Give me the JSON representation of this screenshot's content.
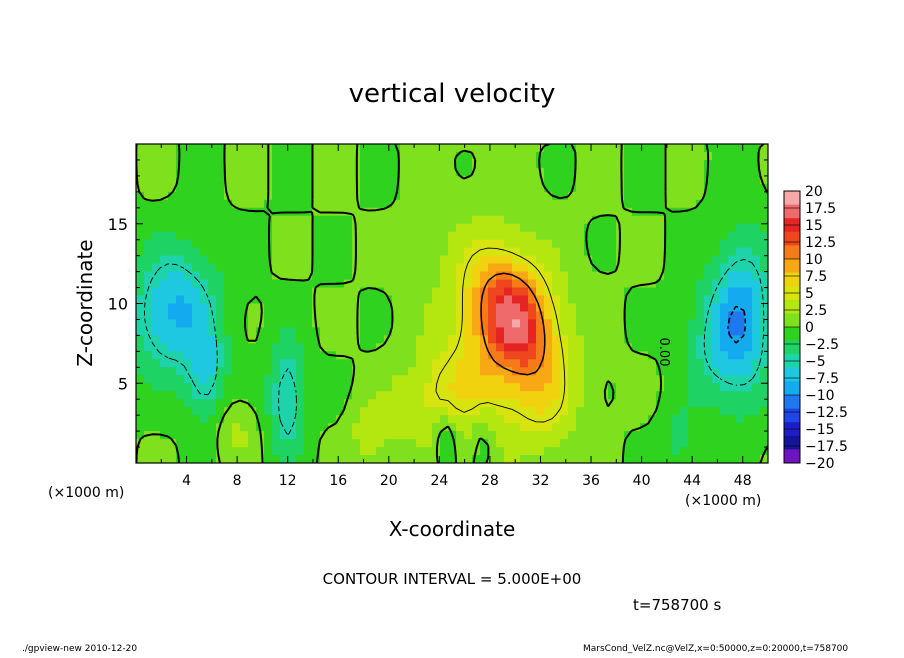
{
  "chart_data": {
    "type": "heatmap",
    "title": "vertical velocity",
    "xlabel": "X-coordinate",
    "ylabel": "Z-coordinate",
    "x_unit_label": "(×1000 m)",
    "xlim": [
      0,
      50
    ],
    "ylim": [
      0,
      20
    ],
    "x_ticks": [
      "4",
      "8",
      "12",
      "16",
      "20",
      "24",
      "28",
      "32",
      "36",
      "40",
      "44",
      "48"
    ],
    "y_ticks": [
      "5",
      "10",
      "15"
    ],
    "colorbar": {
      "labels": [
        "20",
        "17.5",
        "15",
        "12.5",
        "10",
        "7.5",
        "5",
        "2.5",
        "0",
        "−2.5",
        "−5",
        "−7.5",
        "−10",
        "−12.5",
        "−15",
        "−17.5",
        "−20"
      ],
      "colors": [
        "#f7a8a8",
        "#ef6b6b",
        "#e52424",
        "#f0461e",
        "#f57a18",
        "#f7a814",
        "#f0d20f",
        "#d8e40f",
        "#b4e60f",
        "#7fe01e",
        "#2fd21e",
        "#1ed264",
        "#1ed2aa",
        "#1ec8e0",
        "#14aaf0",
        "#1e78f0",
        "#1e46e6",
        "#1e1ec8",
        "#14149a",
        "#6e14be"
      ],
      "min": -20,
      "max": 20
    },
    "background_value": 0,
    "features": [
      {
        "kind": "updraft",
        "x": 30,
        "z": 9,
        "w": 12.5,
        "sx": 1.8,
        "sz": 2.6,
        "rot": 30
      },
      {
        "kind": "updraft",
        "x": 29,
        "z": 8.5,
        "w": 5.5,
        "sx": 3.5,
        "sz": 4.6,
        "rot": 18
      },
      {
        "kind": "updraft",
        "x": 26.5,
        "z": 4.5,
        "w": 3.5,
        "sx": 2.2,
        "sz": 2.4,
        "rot": 0
      },
      {
        "kind": "updraft",
        "x": 32.5,
        "z": 3.5,
        "w": 3.0,
        "sx": 1.8,
        "sz": 2.0,
        "rot": 0
      },
      {
        "kind": "updraft",
        "x": 18.5,
        "z": 2.0,
        "w": 4.0,
        "sx": 1.0,
        "sz": 1.4,
        "rot": 0
      },
      {
        "kind": "updraft",
        "x": 21.0,
        "z": 3.5,
        "w": 2.5,
        "sx": 1.0,
        "sz": 1.8,
        "rot": 0
      },
      {
        "kind": "updraft",
        "x": 23.5,
        "z": 4.0,
        "w": 3.0,
        "sx": 1.2,
        "sz": 2.0,
        "rot": 0
      },
      {
        "kind": "updraft",
        "x": 8.0,
        "z": 2.0,
        "w": 2.5,
        "sx": 1.0,
        "sz": 1.2,
        "rot": 0
      },
      {
        "kind": "downdraft",
        "x": 3.0,
        "z": 9.5,
        "w": -8.5,
        "sx": 2.4,
        "sz": 2.8,
        "rot": -10
      },
      {
        "kind": "downdraft",
        "x": 5.5,
        "z": 5.5,
        "w": -6.0,
        "sx": 1.0,
        "sz": 2.0,
        "rot": 0
      },
      {
        "kind": "downdraft",
        "x": 12.0,
        "z": 4.0,
        "w": -7.0,
        "sx": 1.0,
        "sz": 2.6,
        "rot": 0
      },
      {
        "kind": "downdraft",
        "x": 48.0,
        "z": 9.0,
        "w": -9.0,
        "sx": 1.6,
        "sz": 3.6,
        "rot": 0
      },
      {
        "kind": "downdraft",
        "x": 45.5,
        "z": 7.5,
        "w": -4.0,
        "sx": 1.6,
        "sz": 2.6,
        "rot": 0
      },
      {
        "kind": "downdraft",
        "x": 24.5,
        "z": 1.5,
        "w": -5.0,
        "sx": 0.5,
        "sz": 1.2,
        "rot": 0
      },
      {
        "kind": "downdraft",
        "x": 27.5,
        "z": 1.8,
        "w": -3.0,
        "sx": 0.7,
        "sz": 1.4,
        "rot": 0
      },
      {
        "kind": "downdraft",
        "x": 43.0,
        "z": 1.5,
        "w": -3.0,
        "sx": 1.0,
        "sz": 1.4,
        "rot": 0
      }
    ],
    "contour_label": "0.00",
    "contour_interval_text": "CONTOUR INTERVAL = 5.000E+00",
    "time_text": "t=758700 s"
  },
  "footer": {
    "left": "./gpview-new   2010-12-20",
    "right": "MarsCond_VelZ.nc@VelZ,x=0:50000,z=0:20000,t=758700"
  }
}
